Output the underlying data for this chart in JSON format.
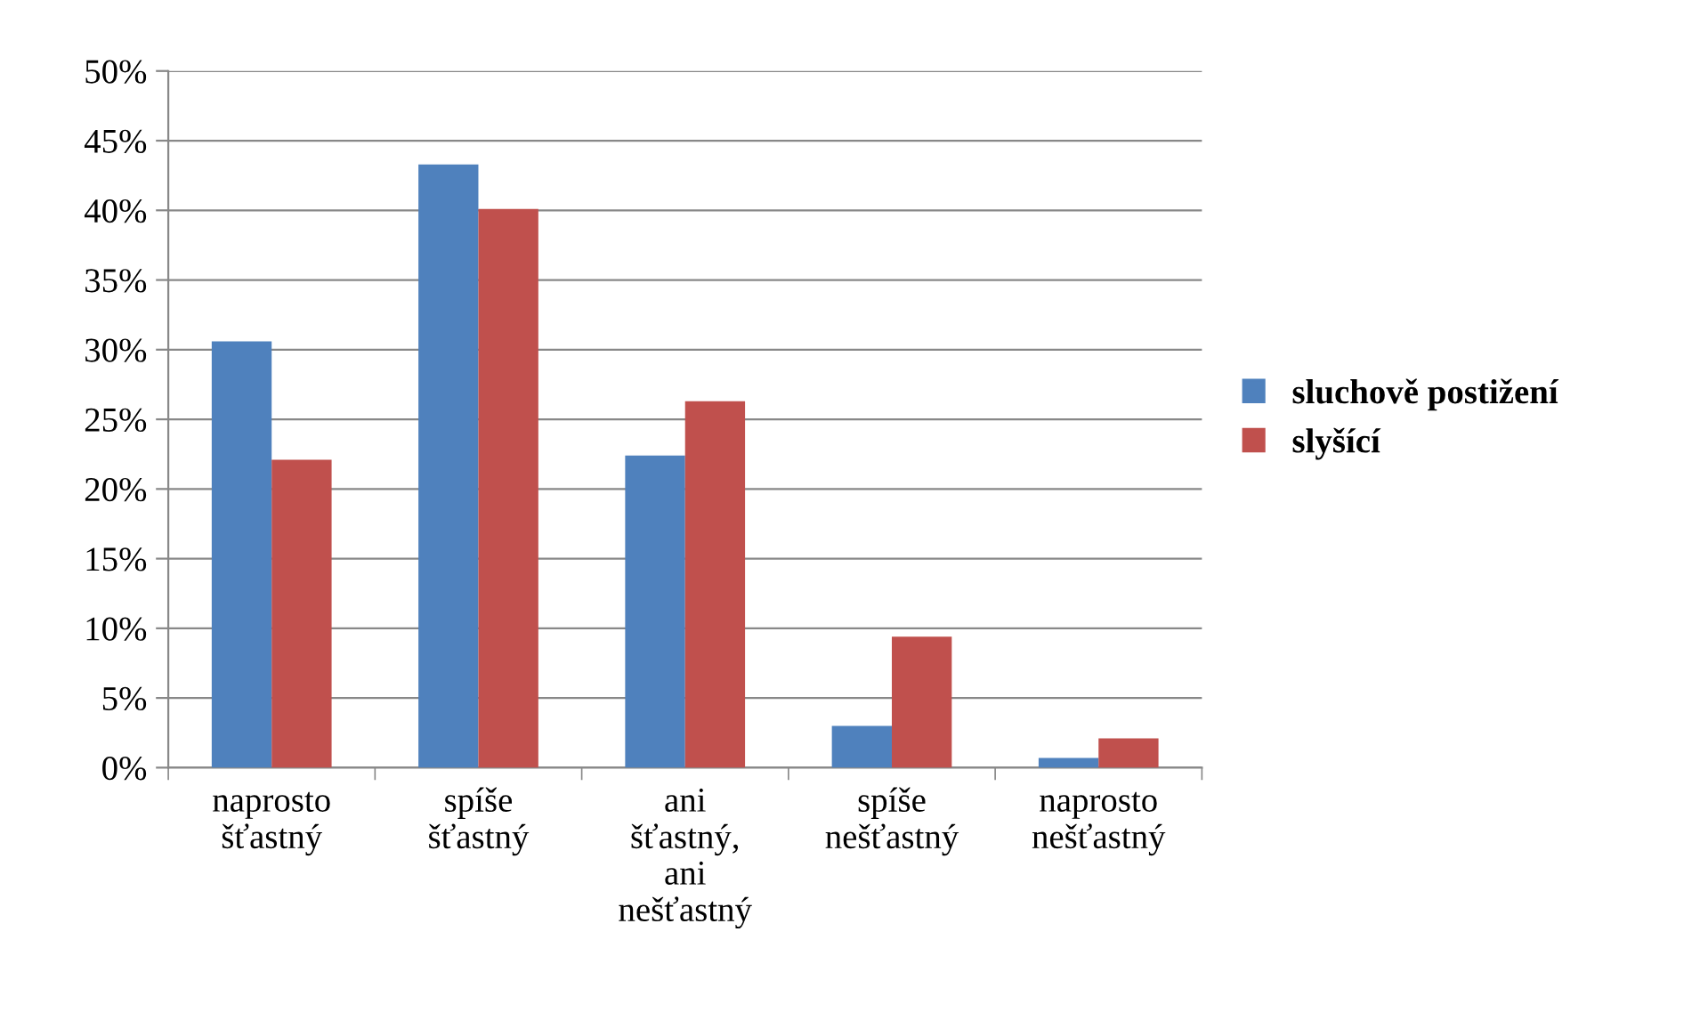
{
  "chart_data": {
    "type": "bar",
    "categories": [
      "naprosto\nšťastný",
      "spíše\nšťastný",
      "ani\nšťastný,\nani\nnešťastný",
      "spíše\nnešťastný",
      "naprosto\nnešťastný"
    ],
    "series": [
      {
        "name": "sluchově postižení",
        "color": "#4f81bd",
        "values": [
          30.6,
          43.3,
          22.4,
          3.0,
          0.7
        ]
      },
      {
        "name": "slyšící",
        "color": "#c0504d",
        "values": [
          22.1,
          40.1,
          26.3,
          9.4,
          2.1
        ]
      }
    ],
    "ylim": [
      0,
      50
    ],
    "yticks": [
      {
        "value": 0,
        "label": "0%"
      },
      {
        "value": 5,
        "label": "5%"
      },
      {
        "value": 10,
        "label": "10%"
      },
      {
        "value": 15,
        "label": "15%"
      },
      {
        "value": 20,
        "label": "20%"
      },
      {
        "value": 25,
        "label": "25%"
      },
      {
        "value": 30,
        "label": "30%"
      },
      {
        "value": 35,
        "label": "35%"
      },
      {
        "value": 40,
        "label": "40%"
      },
      {
        "value": 45,
        "label": "45%"
      },
      {
        "value": 50,
        "label": "50%"
      }
    ],
    "grid": "y",
    "legend": "right"
  }
}
